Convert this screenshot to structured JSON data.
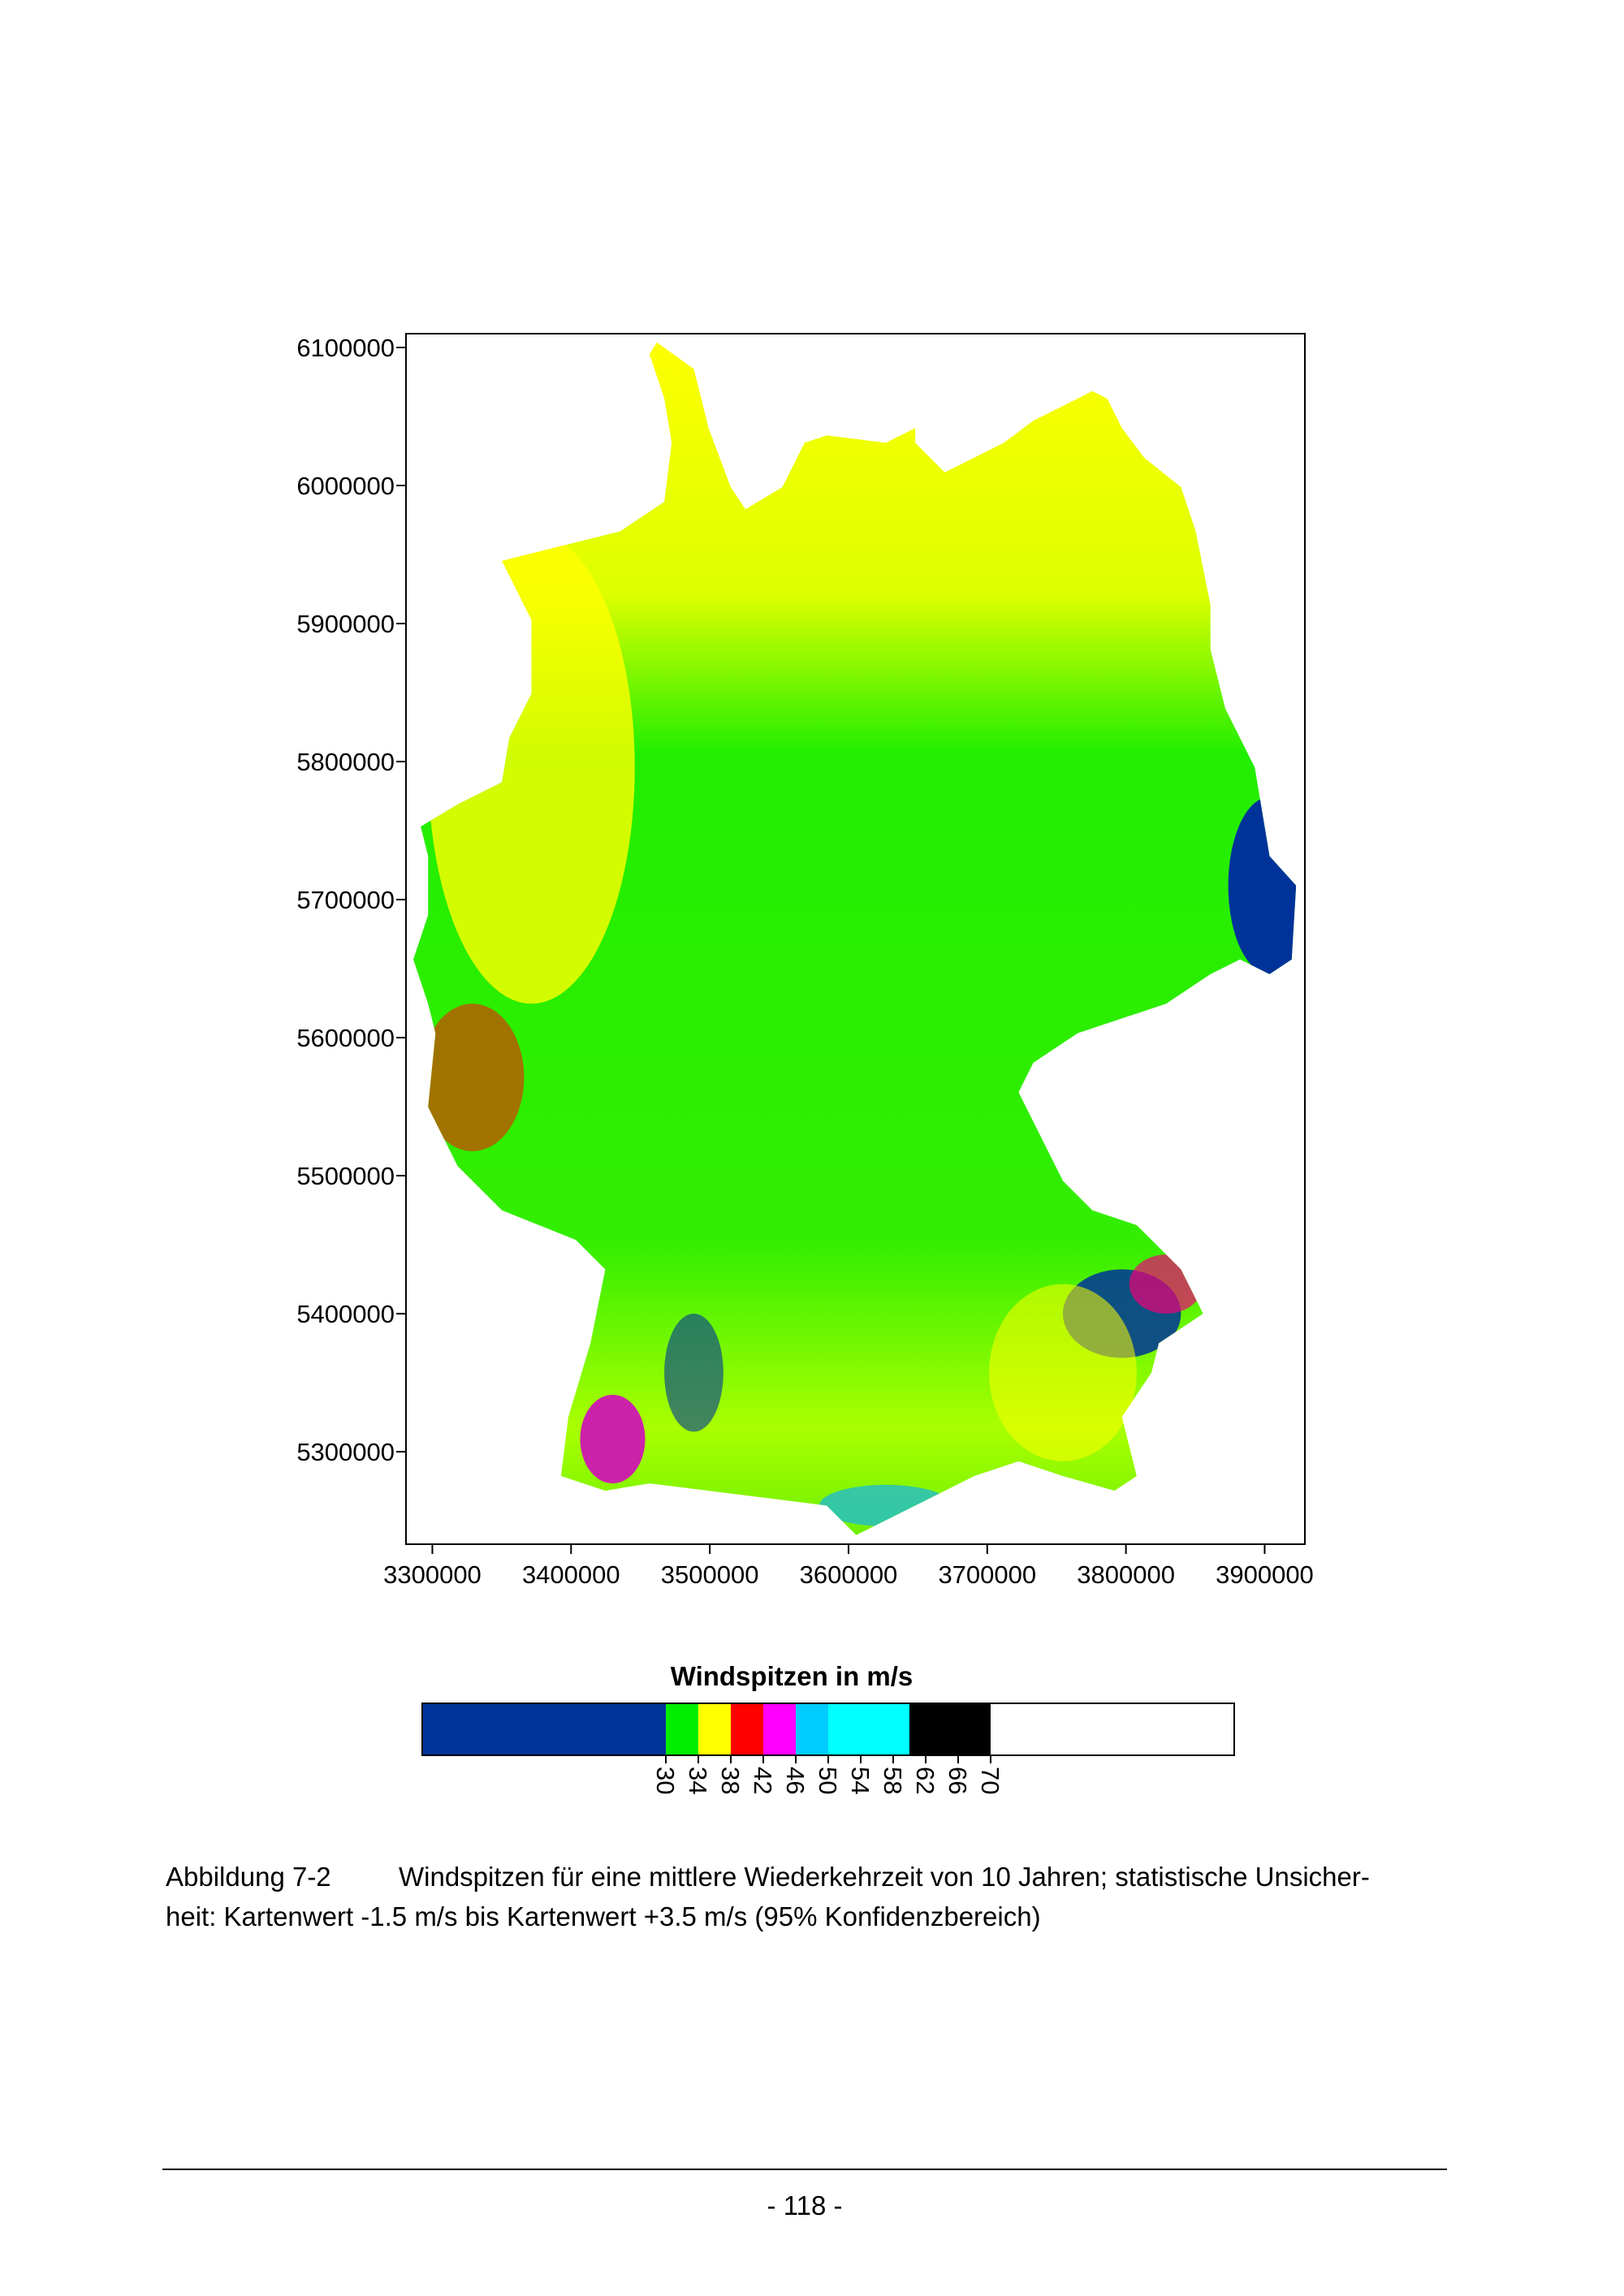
{
  "chart_data": {
    "type": "map",
    "title": "Windspitzen in m/s",
    "xlim": [
      3281000,
      3929000
    ],
    "xticks": [
      3300000,
      3400000,
      3500000,
      3600000,
      3700000,
      3800000,
      3900000
    ],
    "ylim": [
      5233000,
      6110000
    ],
    "yticks": [
      5300000,
      5400000,
      5500000,
      5600000,
      5700000,
      5800000,
      5900000,
      6000000,
      6100000
    ],
    "colorbar": {
      "lim": [
        0,
        100
      ],
      "bounds": [
        0,
        30,
        34,
        38,
        42,
        46,
        50,
        60,
        70,
        100
      ],
      "colors": [
        "#003399",
        "#00ee00",
        "#ffff00",
        "#ff0000",
        "#ff00ff",
        "#00ccff",
        "#00ffff",
        "#000000",
        "#ffffff"
      ],
      "ticks": [
        30,
        34,
        38,
        42,
        46,
        50,
        54,
        58,
        62,
        66,
        70
      ]
    }
  },
  "caption": {
    "label": "Abbildung 7-2",
    "lines": [
      "Windspitzen für eine mittlere Wiederkehrzeit von 10 Jahren; statistische Unsicher-",
      "heit: Kartenwert -1.5 m/s bis Kartenwert +3.5 m/s (95% Konfidenzbereich)"
    ]
  },
  "page_number": "- 118 -"
}
